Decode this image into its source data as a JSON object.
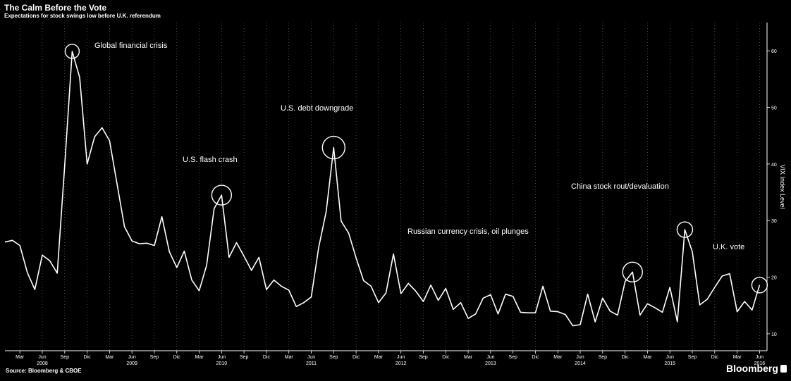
{
  "header": {
    "title": "The Calm Before the Vote",
    "subtitle": "Expectations for stock swings low before U.K. referendum"
  },
  "footer": {
    "source": "Source:  Bloomberg & CBOE",
    "brand": "Bloomberg"
  },
  "chart_data": {
    "type": "line",
    "title": "The Calm Before the Vote",
    "subtitle": "Expectations for stock swings low before U.K. referendum",
    "ylabel": "VIX Index Level",
    "ylim": [
      7,
      65
    ],
    "yticks": [
      10,
      20,
      30,
      40,
      50,
      60
    ],
    "y_axis_position": "right",
    "grid": "vertical dotted",
    "x_start": "2008-01",
    "x_end": "2016-07",
    "month_tick_labels": [
      "Mar",
      "Jun",
      "Sep",
      "Dic",
      "Mar",
      "Jun",
      "Sep",
      "Dic",
      "Mar",
      "Jun",
      "Sep",
      "Dic",
      "Mar",
      "Jun",
      "Sep",
      "Dic",
      "Mar",
      "Jun",
      "Sep",
      "Dic",
      "Mar",
      "Jun",
      "Sep",
      "Dic",
      "Mar",
      "Jun",
      "Sep",
      "Dic",
      "Mar",
      "Jun",
      "Sep",
      "Dic",
      "Mar",
      "Jun"
    ],
    "year_labels": [
      {
        "label": "2008",
        "date": "2008-06"
      },
      {
        "label": "2009",
        "date": "2009-06"
      },
      {
        "label": "2010",
        "date": "2010-06"
      },
      {
        "label": "2011",
        "date": "2011-06"
      },
      {
        "label": "2012",
        "date": "2012-06"
      },
      {
        "label": "2013",
        "date": "2013-06"
      },
      {
        "label": "2014",
        "date": "2014-06"
      },
      {
        "label": "2015",
        "date": "2015-06"
      },
      {
        "label": "2016",
        "date": "2016-06"
      }
    ],
    "series": [
      {
        "color": "#ffffff",
        "points": [
          [
            "2008-01",
            26.2
          ],
          [
            "2008-02",
            26.5
          ],
          [
            "2008-03",
            25.6
          ],
          [
            "2008-04",
            20.8
          ],
          [
            "2008-05",
            17.8
          ],
          [
            "2008-06",
            23.9
          ],
          [
            "2008-07",
            22.9
          ],
          [
            "2008-08",
            20.7
          ],
          [
            "2008-09",
            39.8
          ],
          [
            "2008-10",
            59.9
          ],
          [
            "2008-11",
            55.3
          ],
          [
            "2008-12",
            40.0
          ],
          [
            "2009-01",
            44.8
          ],
          [
            "2009-02",
            46.4
          ],
          [
            "2009-03",
            44.1
          ],
          [
            "2009-04",
            36.5
          ],
          [
            "2009-05",
            28.9
          ],
          [
            "2009-06",
            26.4
          ],
          [
            "2009-07",
            25.9
          ],
          [
            "2009-08",
            26.0
          ],
          [
            "2009-09",
            25.6
          ],
          [
            "2009-10",
            30.7
          ],
          [
            "2009-11",
            24.5
          ],
          [
            "2009-12",
            21.7
          ],
          [
            "2010-01",
            24.6
          ],
          [
            "2010-02",
            19.5
          ],
          [
            "2010-03",
            17.6
          ],
          [
            "2010-04",
            22.1
          ],
          [
            "2010-05",
            32.1
          ],
          [
            "2010-06",
            34.5
          ],
          [
            "2010-07",
            23.5
          ],
          [
            "2010-08",
            26.1
          ],
          [
            "2010-09",
            23.7
          ],
          [
            "2010-10",
            21.2
          ],
          [
            "2010-11",
            23.5
          ],
          [
            "2010-12",
            17.8
          ],
          [
            "2011-01",
            19.5
          ],
          [
            "2011-02",
            18.4
          ],
          [
            "2011-03",
            17.7
          ],
          [
            "2011-04",
            14.8
          ],
          [
            "2011-05",
            15.5
          ],
          [
            "2011-06",
            16.5
          ],
          [
            "2011-07",
            25.3
          ],
          [
            "2011-08",
            31.6
          ],
          [
            "2011-09",
            42.9
          ],
          [
            "2011-10",
            29.9
          ],
          [
            "2011-11",
            27.8
          ],
          [
            "2011-12",
            23.4
          ],
          [
            "2012-01",
            19.4
          ],
          [
            "2012-02",
            18.4
          ],
          [
            "2012-03",
            15.5
          ],
          [
            "2012-04",
            17.2
          ],
          [
            "2012-05",
            24.1
          ],
          [
            "2012-06",
            17.1
          ],
          [
            "2012-07",
            18.9
          ],
          [
            "2012-08",
            17.5
          ],
          [
            "2012-09",
            15.7
          ],
          [
            "2012-10",
            18.6
          ],
          [
            "2012-11",
            15.9
          ],
          [
            "2012-12",
            18.0
          ],
          [
            "2013-01",
            14.3
          ],
          [
            "2013-02",
            15.5
          ],
          [
            "2013-03",
            12.7
          ],
          [
            "2013-04",
            13.5
          ],
          [
            "2013-05",
            16.3
          ],
          [
            "2013-06",
            16.9
          ],
          [
            "2013-07",
            13.5
          ],
          [
            "2013-08",
            17.0
          ],
          [
            "2013-09",
            16.6
          ],
          [
            "2013-10",
            13.8
          ],
          [
            "2013-11",
            13.7
          ],
          [
            "2013-12",
            13.7
          ],
          [
            "2014-01",
            18.4
          ],
          [
            "2014-02",
            14.0
          ],
          [
            "2014-03",
            13.9
          ],
          [
            "2014-04",
            13.4
          ],
          [
            "2014-05",
            11.4
          ],
          [
            "2014-06",
            11.6
          ],
          [
            "2014-07",
            17.0
          ],
          [
            "2014-08",
            12.1
          ],
          [
            "2014-09",
            16.3
          ],
          [
            "2014-10",
            14.0
          ],
          [
            "2014-11",
            13.3
          ],
          [
            "2014-12",
            19.2
          ],
          [
            "2015-01",
            20.9
          ],
          [
            "2015-02",
            13.3
          ],
          [
            "2015-03",
            15.3
          ],
          [
            "2015-04",
            14.6
          ],
          [
            "2015-05",
            13.8
          ],
          [
            "2015-06",
            18.2
          ],
          [
            "2015-07",
            12.1
          ],
          [
            "2015-08",
            28.4
          ],
          [
            "2015-09",
            24.5
          ],
          [
            "2015-10",
            15.1
          ],
          [
            "2015-11",
            16.1
          ],
          [
            "2015-12",
            18.2
          ],
          [
            "2016-01",
            20.2
          ],
          [
            "2016-02",
            20.6
          ],
          [
            "2016-03",
            13.9
          ],
          [
            "2016-04",
            15.7
          ],
          [
            "2016-05",
            14.2
          ],
          [
            "2016-06",
            18.6
          ]
        ]
      }
    ],
    "annotations": [
      {
        "text": "Global financial crisis",
        "date": "2008-10",
        "value": 59.9
      },
      {
        "text": "U.S. flash crash",
        "date": "2010-06",
        "value": 34.5
      },
      {
        "text": "U.S. debt downgrade",
        "date": "2011-09",
        "value": 42.9
      },
      {
        "text": "China stock rout/devaluation",
        "date": "2015-08",
        "value": 28.4
      },
      {
        "text": "Russian currency crisis, oil plunges",
        "date": "2015-01",
        "value": 20.9
      },
      {
        "text": "U.K. vote",
        "date": "2016-06",
        "value": 18.6
      }
    ]
  }
}
